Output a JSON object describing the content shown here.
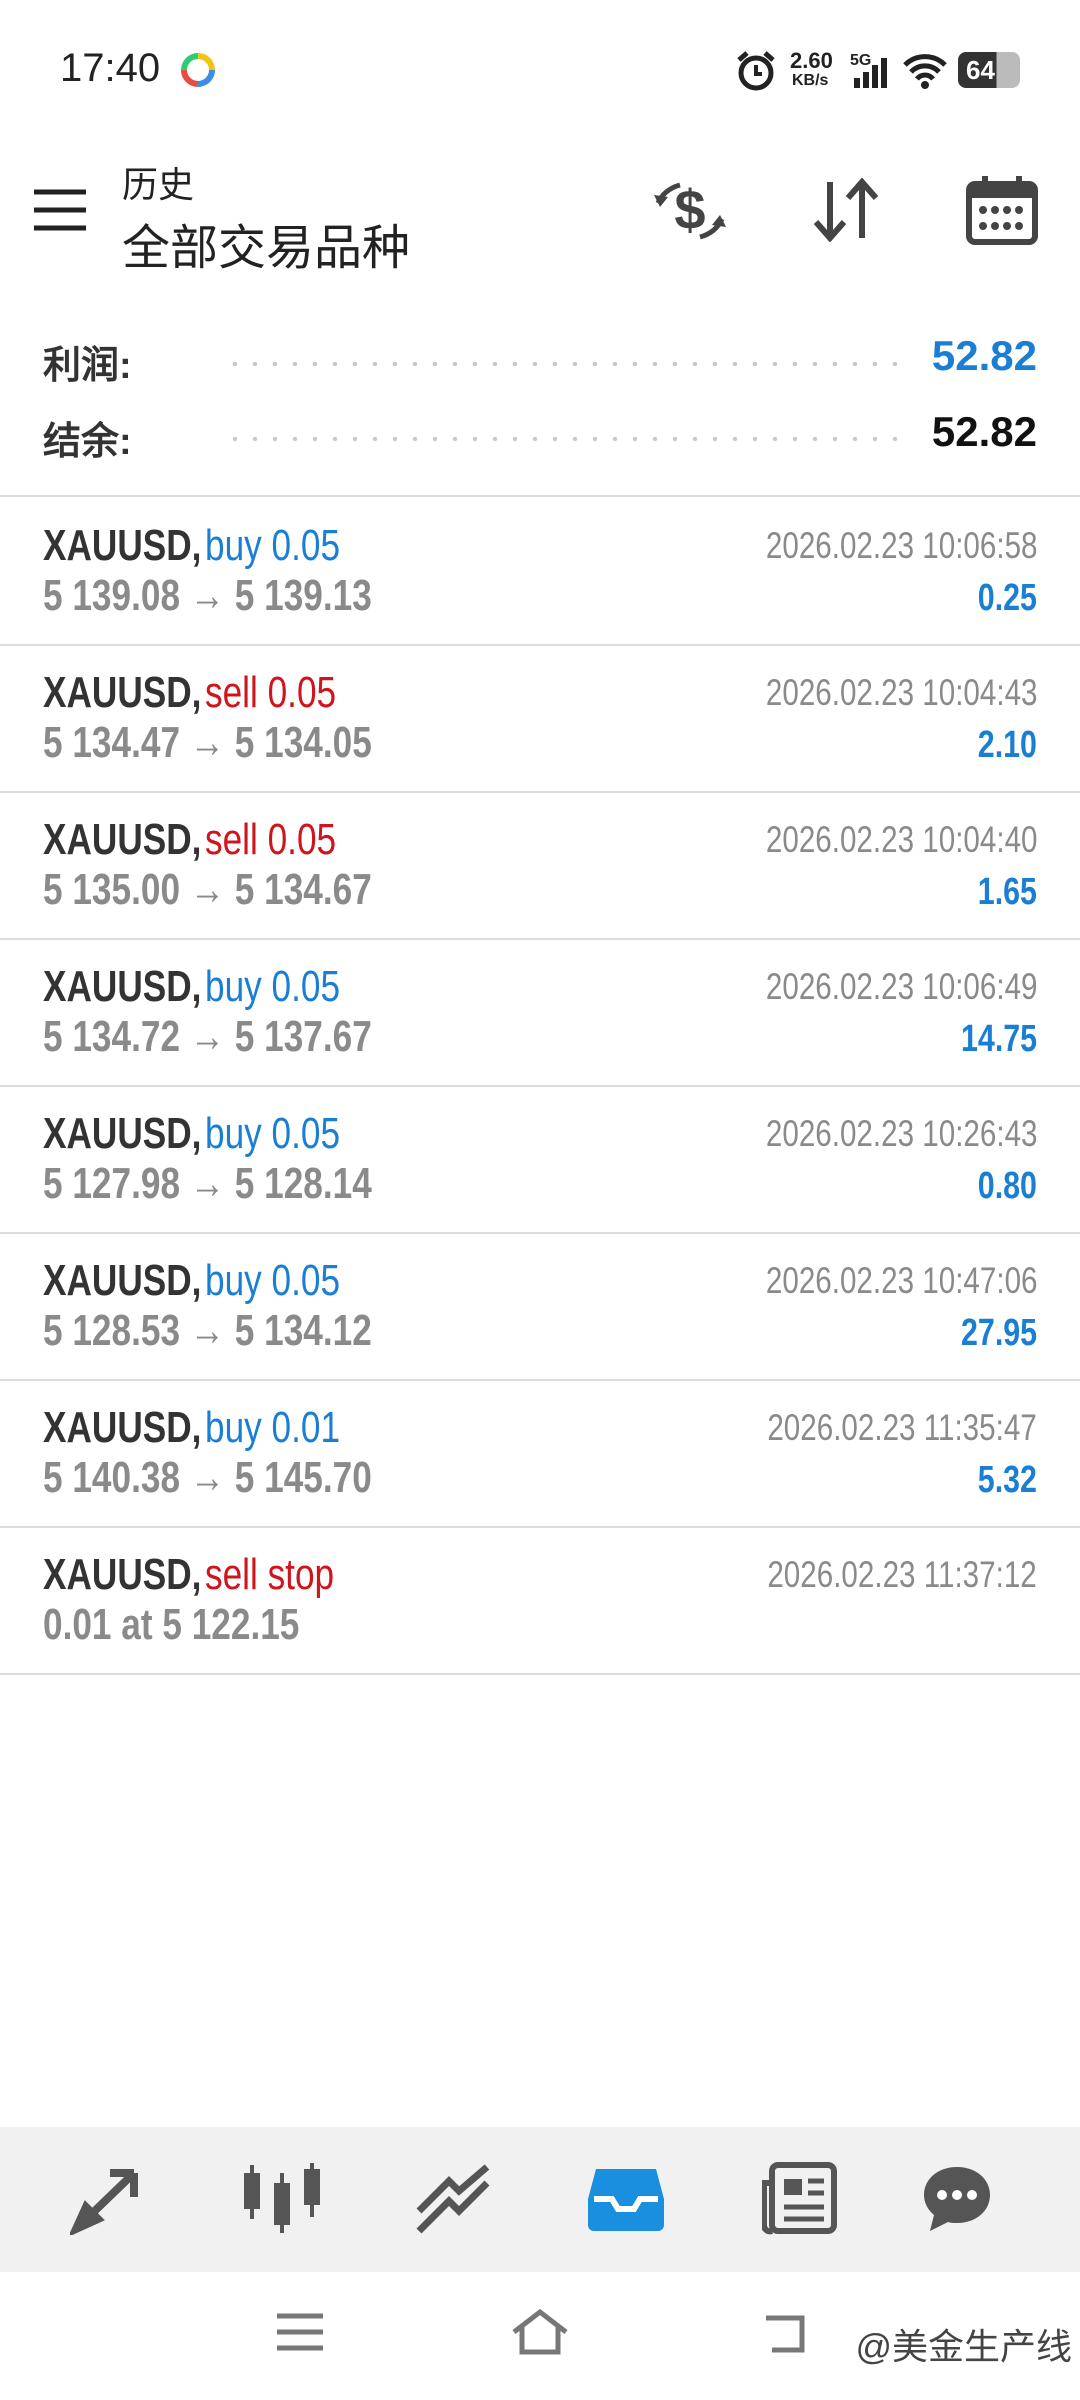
{
  "status_bar": {
    "time": "17:40",
    "speed": "2.60",
    "speed_unit": "KB/s",
    "network": "5G",
    "battery": "64"
  },
  "header": {
    "subtitle": "历史",
    "title": "全部交易品种"
  },
  "summary": {
    "profit_label": "利润:",
    "profit": "52.82",
    "balance_label": "结余:",
    "balance": "52.82"
  },
  "trades": [
    {
      "symbol": "XAUUSD,",
      "side": "buy 0.05",
      "side_color": "#1a7fd4",
      "prices": "5 139.08 → 5 139.13",
      "time": "2026.02.23 10:06:58",
      "profit": "0.25"
    },
    {
      "symbol": "XAUUSD,",
      "side": "sell 0.05",
      "side_color": "#d0141c",
      "prices": "5 134.47 → 5 134.05",
      "time": "2026.02.23 10:04:43",
      "profit": "2.10"
    },
    {
      "symbol": "XAUUSD,",
      "side": "sell 0.05",
      "side_color": "#d0141c",
      "prices": "5 135.00 → 5 134.67",
      "time": "2026.02.23 10:04:40",
      "profit": "1.65"
    },
    {
      "symbol": "XAUUSD,",
      "side": "buy 0.05",
      "side_color": "#1a7fd4",
      "prices": "5 134.72 → 5 137.67",
      "time": "2026.02.23 10:06:49",
      "profit": "14.75"
    },
    {
      "symbol": "XAUUSD,",
      "side": "buy 0.05",
      "side_color": "#1a7fd4",
      "prices": "5 127.98 → 5 128.14",
      "time": "2026.02.23 10:26:43",
      "profit": "0.80"
    },
    {
      "symbol": "XAUUSD,",
      "side": "buy 0.05",
      "side_color": "#1a7fd4",
      "prices": "5 128.53 → 5 134.12",
      "time": "2026.02.23 10:47:06",
      "profit": "27.95"
    },
    {
      "symbol": "XAUUSD,",
      "side": "buy 0.01",
      "side_color": "#1a7fd4",
      "prices": "5 140.38 → 5 145.70",
      "time": "2026.02.23 11:35:47",
      "profit": "5.32"
    },
    {
      "symbol": "XAUUSD,",
      "side": "sell stop",
      "side_color": "#d0141c",
      "prices": "0.01 at 5 122.15",
      "time": "2026.02.23 11:37:12"
    }
  ],
  "watermark": "@美金生产线"
}
